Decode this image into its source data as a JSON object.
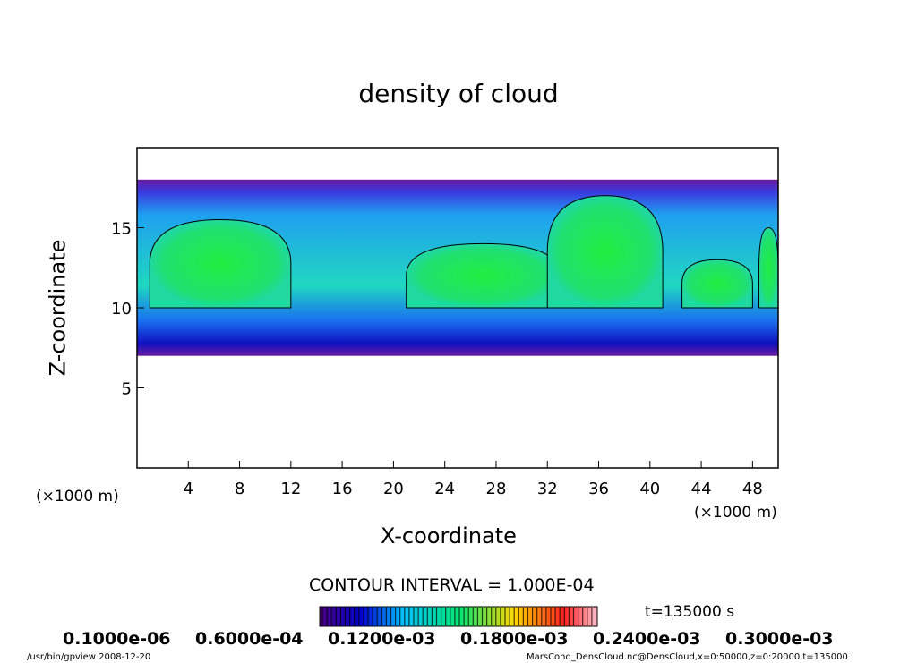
{
  "chart_data": {
    "type": "heatmap",
    "title": "density of cloud",
    "xlabel": "X-coordinate",
    "ylabel": "Z-coordinate",
    "x_unit": "(×1000 m)",
    "xlim": [
      0,
      50
    ],
    "ylim": [
      0,
      20
    ],
    "x_ticks": [
      4,
      8,
      12,
      16,
      20,
      24,
      28,
      32,
      36,
      40,
      44,
      48
    ],
    "y_ticks": [
      5,
      10,
      15
    ],
    "contour_interval": "CONTOUR INTERVAL = 1.000E-04",
    "colorbar_labels": [
      "0.1000e-06",
      "0.6000e-04",
      "0.1200e-03",
      "0.1800e-03",
      "0.2400e-03",
      "0.3000e-03"
    ],
    "colormap": [
      "#4b0082",
      "#0000cd",
      "#00bfff",
      "#00e676",
      "#ffd700",
      "#ff0000",
      "#ffc0cb"
    ],
    "cloud_layer_z": [
      7,
      18
    ],
    "time_label": "t=135000 s"
  },
  "footer": {
    "left": "/usr/bin/gpview   2008-12-20",
    "right": "MarsCond_DensCloud.nc@DensCloud,x=0:50000,z=0:20000,t=135000"
  }
}
